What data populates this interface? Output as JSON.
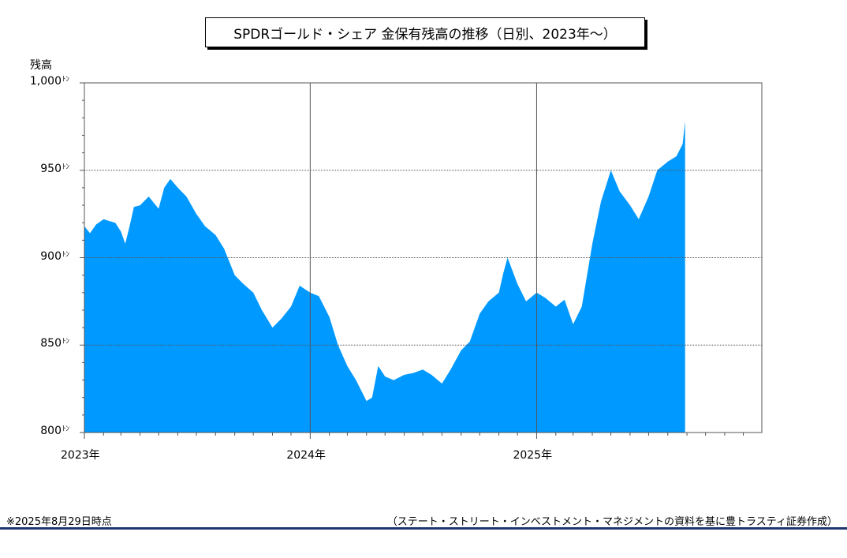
{
  "chart_data": {
    "type": "area",
    "title": "SPDRゴールド・シェア 金保有残高の推移（日別、2023年～）",
    "ylabel": "残高",
    "y_unit": "ﾄﾝ",
    "ylim": [
      800,
      1000
    ],
    "y_ticks": [
      "1,000",
      "950",
      "900",
      "850",
      "800"
    ],
    "x_ticks": [
      "2023年",
      "2024年",
      "2025年"
    ],
    "xlim": [
      "2023-01-01",
      "2025-12-31"
    ],
    "grid": true,
    "color": "#0099ff",
    "series": [
      {
        "x": [
          "2023-01-01",
          "2023-01-10",
          "2023-01-20",
          "2023-02-01",
          "2023-02-10",
          "2023-02-20",
          "2023-03-01",
          "2023-03-08",
          "2023-03-15",
          "2023-03-22",
          "2023-04-01",
          "2023-04-15",
          "2023-05-01",
          "2023-05-10",
          "2023-05-20",
          "2023-06-01",
          "2023-06-15",
          "2023-07-01",
          "2023-07-15",
          "2023-08-01",
          "2023-08-15",
          "2023-09-01",
          "2023-09-15",
          "2023-10-01",
          "2023-10-15",
          "2023-11-01",
          "2023-11-15",
          "2023-12-01",
          "2023-12-15",
          "2024-01-01",
          "2024-01-15",
          "2024-02-01",
          "2024-02-15",
          "2024-03-01",
          "2024-03-15",
          "2024-04-01",
          "2024-04-10",
          "2024-04-20",
          "2024-05-01",
          "2024-05-15",
          "2024-06-01",
          "2024-06-15",
          "2024-07-01",
          "2024-07-15",
          "2024-08-01",
          "2024-08-15",
          "2024-09-01",
          "2024-09-15",
          "2024-10-01",
          "2024-10-15",
          "2024-11-01",
          "2024-11-08",
          "2024-11-15",
          "2024-12-01",
          "2024-12-15",
          "2025-01-01",
          "2025-01-15",
          "2025-02-01",
          "2025-02-15",
          "2025-03-01",
          "2025-03-15",
          "2025-04-01",
          "2025-04-15",
          "2025-05-01",
          "2025-05-15",
          "2025-06-01",
          "2025-06-15",
          "2025-07-01",
          "2025-07-15",
          "2025-08-01",
          "2025-08-15",
          "2025-08-25",
          "2025-08-29"
        ],
        "y": [
          918,
          914,
          919,
          922,
          921,
          920,
          915,
          908,
          918,
          929,
          930,
          935,
          928,
          940,
          945,
          940,
          935,
          925,
          918,
          913,
          905,
          890,
          885,
          880,
          870,
          860,
          865,
          872,
          884,
          880,
          878,
          866,
          850,
          838,
          830,
          818,
          820,
          838,
          832,
          830,
          833,
          834,
          836,
          833,
          828,
          836,
          847,
          852,
          868,
          875,
          880,
          891,
          900,
          885,
          875,
          880,
          877,
          872,
          876,
          862,
          872,
          908,
          932,
          950,
          938,
          930,
          922,
          935,
          950,
          955,
          958,
          965,
          978
        ]
      }
    ]
  },
  "footer": {
    "note": "※2025年8月29日時点",
    "source": "（ステート・ストリート・インベストメント・マネジメントの資料を基に豊トラスティ証券作成）"
  }
}
